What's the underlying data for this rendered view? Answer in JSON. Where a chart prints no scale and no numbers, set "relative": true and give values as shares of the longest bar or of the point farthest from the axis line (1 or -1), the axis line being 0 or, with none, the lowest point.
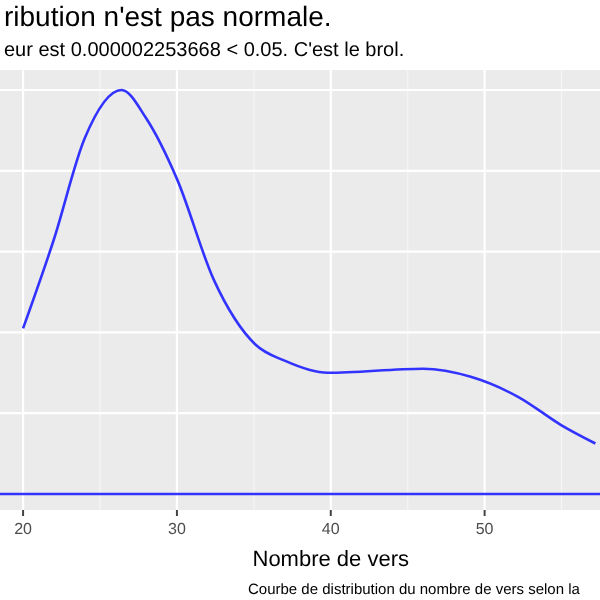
{
  "chart_data": {
    "type": "line",
    "title": "ribution n'est pas normale.",
    "subtitle": "eur est  0.000002253668  < 0.05. C'est le brol.",
    "xlabel": "Nombre de vers",
    "annotations": [
      "Courbe de distribution du nombre de vers selon la"
    ],
    "relative": true,
    "xlim": [
      18.5,
      57.5
    ],
    "xticks": [
      20,
      30,
      40,
      50
    ],
    "tick_labels": "x",
    "grid": true,
    "marker": "none",
    "line_style": "solid",
    "ref_lines": [
      {
        "axis": "y",
        "value": 0,
        "color": "#3333ff"
      }
    ],
    "series": [
      {
        "color": "#3333ff",
        "x": [
          20,
          22,
          24,
          26.4,
          28,
          30,
          32.4,
          35.1,
          37,
          39.8,
          46,
          49.1,
          52.2,
          55,
          57.2
        ],
        "values": [
          0.41,
          0.63,
          0.88,
          1,
          0.93,
          0.78,
          0.53,
          0.37,
          0.33,
          0.3,
          0.31,
          0.29,
          0.24,
          0.17,
          0.125
        ]
      }
    ]
  }
}
